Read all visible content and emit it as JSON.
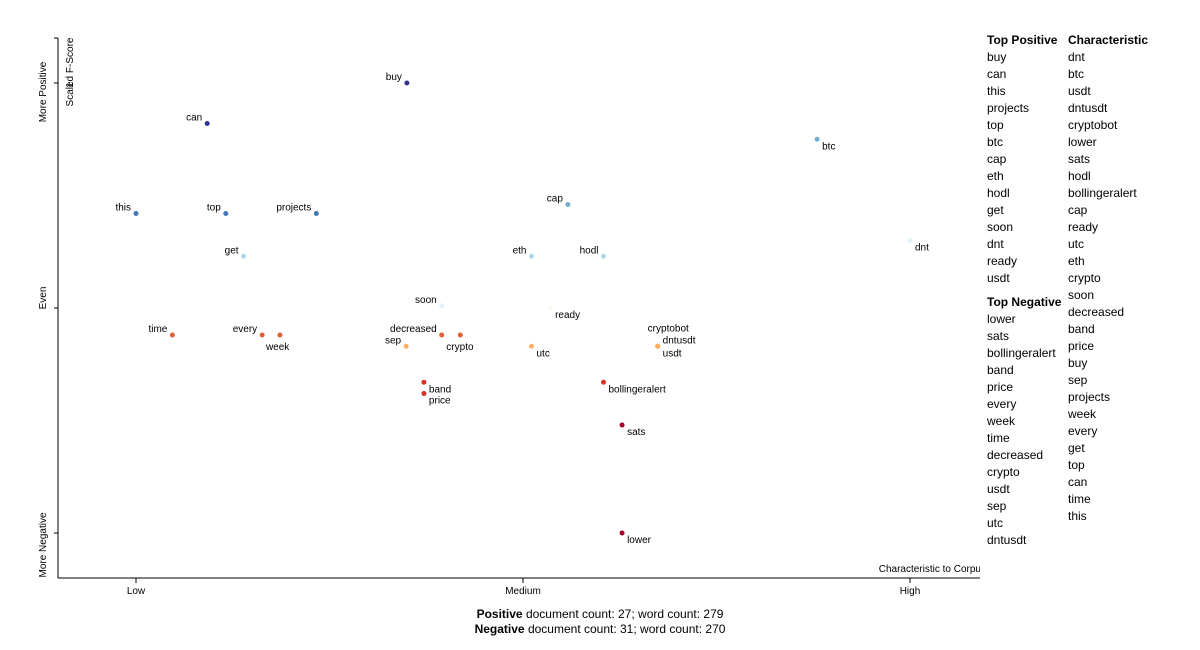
{
  "chart_data": {
    "type": "scatter",
    "y_title": "Scaled F-Score",
    "x_title": "Characteristic to Corpus",
    "x_ticks": [
      "Low",
      "Medium",
      "High"
    ],
    "y_ticks": [
      "More Positive",
      "Even",
      "More Negative"
    ],
    "y_tick_values": [
      "1"
    ],
    "xlim": [
      0,
      1
    ],
    "ylim": [
      -1,
      1
    ],
    "points": [
      {
        "term": "buy",
        "x": 0.35,
        "y": 1.0,
        "color": "#313695",
        "label_side": "left"
      },
      {
        "term": "can",
        "x": 0.092,
        "y": 0.82,
        "color": "#313695",
        "label_side": "left"
      },
      {
        "term": "btc",
        "x": 0.88,
        "y": 0.75,
        "color": "#74add1",
        "label_side": "below-right"
      },
      {
        "term": "this",
        "x": 0.0,
        "y": 0.42,
        "color": "#4575b4",
        "label_side": "left"
      },
      {
        "term": "top",
        "x": 0.116,
        "y": 0.42,
        "color": "#4575b4",
        "label_side": "left"
      },
      {
        "term": "projects",
        "x": 0.233,
        "y": 0.42,
        "color": "#4575b4",
        "label_side": "left"
      },
      {
        "term": "cap",
        "x": 0.558,
        "y": 0.46,
        "color": "#74add1",
        "label_side": "left"
      },
      {
        "term": "get",
        "x": 0.139,
        "y": 0.23,
        "color": "#abd9e9",
        "label_side": "left"
      },
      {
        "term": "eth",
        "x": 0.511,
        "y": 0.23,
        "color": "#abd9e9",
        "label_side": "left"
      },
      {
        "term": "hodl",
        "x": 0.604,
        "y": 0.23,
        "color": "#abd9e9",
        "label_side": "left"
      },
      {
        "term": "dnt",
        "x": 1.0,
        "y": 0.3,
        "color": "#e0f3f8",
        "label_side": "below-right"
      },
      {
        "term": "soon",
        "x": 0.395,
        "y": 0.01,
        "color": "#e0f3f8",
        "label_side": "left"
      },
      {
        "term": "ready",
        "x": 0.535,
        "y": 0.0,
        "color": "#fafaf0",
        "label_side": "below-right"
      },
      {
        "term": "time",
        "x": 0.047,
        "y": -0.12,
        "color": "#e0603a",
        "label_side": "left"
      },
      {
        "term": "every",
        "x": 0.163,
        "y": -0.12,
        "color": "#e0603a",
        "label_side": "left"
      },
      {
        "term": "week",
        "x": 0.186,
        "y": -0.12,
        "color": "#e0603a",
        "label_side": "below-left"
      },
      {
        "term": "decreased",
        "x": 0.395,
        "y": -0.12,
        "color": "#e0603a",
        "label_side": "left"
      },
      {
        "term": "crypto",
        "x": 0.419,
        "y": -0.12,
        "color": "#e0603a",
        "label_side": "below-left"
      },
      {
        "term": "sep",
        "x": 0.349,
        "y": -0.17,
        "color": "#fdae61",
        "label_side": "left"
      },
      {
        "term": "utc",
        "x": 0.511,
        "y": -0.17,
        "color": "#fdae61",
        "label_side": "below-right"
      },
      {
        "term": "cryptobot",
        "x": 0.674,
        "y": -0.17,
        "color": "#fdae61",
        "label_side": "above-left"
      },
      {
        "term": "dntusdt",
        "x": 0.674,
        "y": -0.17,
        "color": "#fdae61",
        "label_side": "right-up"
      },
      {
        "term": "usdt",
        "x": 0.674,
        "y": -0.17,
        "color": "#fdae61",
        "label_side": "below-right"
      },
      {
        "term": "band",
        "x": 0.372,
        "y": -0.33,
        "color": "#d73027",
        "label_side": "below-right"
      },
      {
        "term": "price",
        "x": 0.372,
        "y": -0.38,
        "color": "#d73027",
        "label_side": "below-right"
      },
      {
        "term": "bollingeralert",
        "x": 0.604,
        "y": -0.33,
        "color": "#d73027",
        "label_side": "below-right"
      },
      {
        "term": "sats",
        "x": 0.628,
        "y": -0.52,
        "color": "#a50026",
        "label_side": "below-right"
      },
      {
        "term": "lower",
        "x": 0.628,
        "y": -1.0,
        "color": "#a50026",
        "label_side": "below-right"
      }
    ]
  },
  "lists": {
    "top_positive": {
      "title": "Top Positive",
      "items": [
        "buy",
        "can",
        "this",
        "projects",
        "top",
        "btc",
        "cap",
        "eth",
        "hodl",
        "get",
        "soon",
        "dnt",
        "ready",
        "usdt"
      ]
    },
    "top_negative": {
      "title": "Top Negative",
      "items": [
        "lower",
        "sats",
        "bollingeralert",
        "band",
        "price",
        "every",
        "week",
        "time",
        "decreased",
        "crypto",
        "usdt",
        "sep",
        "utc",
        "dntusdt"
      ]
    },
    "characteristic": {
      "title": "Characteristic",
      "items": [
        "dnt",
        "btc",
        "usdt",
        "dntusdt",
        "cryptobot",
        "lower",
        "sats",
        "hodl",
        "bollingeralert",
        "cap",
        "ready",
        "utc",
        "eth",
        "crypto",
        "soon",
        "decreased",
        "band",
        "price",
        "buy",
        "sep",
        "projects",
        "week",
        "every",
        "get",
        "top",
        "can",
        "time",
        "this"
      ]
    }
  },
  "footer": {
    "positive_label": "Positive",
    "positive_text": "document count: 27; word count: 279",
    "negative_label": "Negative",
    "negative_text": "document count: 31; word count: 270"
  }
}
